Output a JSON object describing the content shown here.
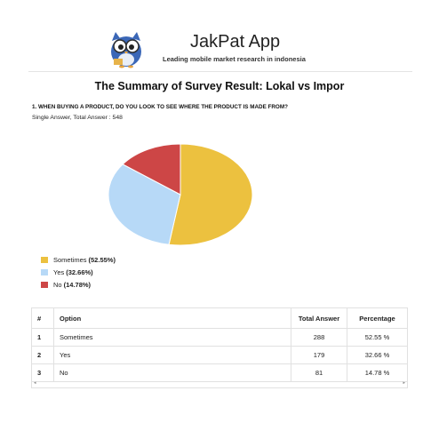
{
  "header": {
    "app_title": "JakPat App",
    "subtitle": "Leading mobile market research in indonesia",
    "logo_icon": "owl-mascot-icon"
  },
  "page_title": "The Summary of Survey Result: Lokal vs Impor",
  "question": "1. WHEN BUYING A PRODUCT, DO YOU LOOK TO SEE WHERE THE PRODUCT IS MADE FROM?",
  "answer_meta": "Single Answer, Total Answer : 548",
  "chart_data": {
    "type": "pie",
    "categories": [
      "Sometimes",
      "Yes",
      "No"
    ],
    "values": [
      52.55,
      32.66,
      14.78
    ],
    "colors": [
      "#ecc13f",
      "#b7d9f7",
      "#cd4646"
    ],
    "legend_labels": [
      "Sometimes",
      "Yes",
      "No"
    ],
    "legend_values": [
      "(52.55%)",
      "(32.66%)",
      "(14.78%)"
    ],
    "legend_position": "bottom-left"
  },
  "table": {
    "headers": [
      "#",
      "Option",
      "Total Answer",
      "Percentage"
    ],
    "rows": [
      [
        "1",
        "Sometimes",
        "288",
        "52.55 %"
      ],
      [
        "2",
        "Yes",
        "179",
        "32.66 %"
      ],
      [
        "3",
        "No",
        "81",
        "14.78 %"
      ]
    ]
  },
  "scroll": {
    "left_icon": "scroll-left-icon",
    "right_icon": "scroll-right-icon",
    "left": "◂",
    "right": "▸"
  }
}
